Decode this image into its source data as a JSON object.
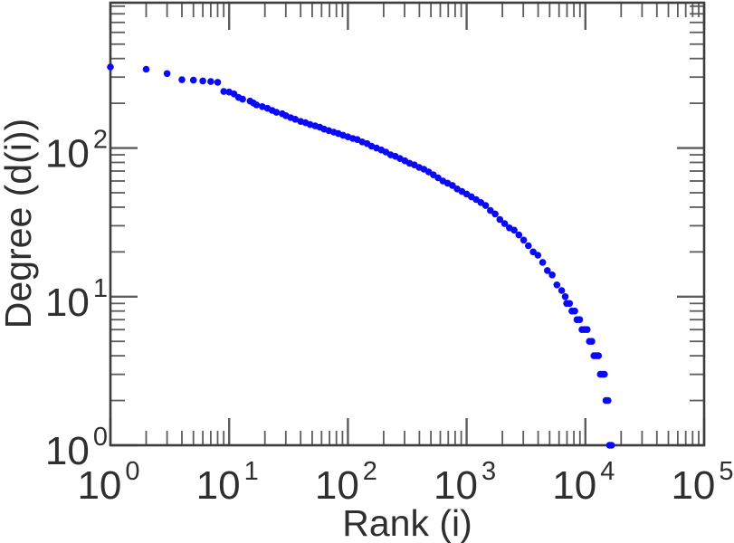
{
  "chart_data": {
    "type": "scatter",
    "title": "",
    "xlabel": "Rank (i)",
    "ylabel": "Degree (d(i))",
    "x_scale": "log",
    "y_scale": "log",
    "xlim": [
      1,
      100000
    ],
    "ylim": [
      1,
      950
    ],
    "x_tick_exponents": [
      0,
      1,
      2,
      3,
      4,
      5
    ],
    "y_tick_exponents": [
      0,
      1,
      2
    ],
    "tick_base": "10",
    "grid": "off",
    "legend": "none",
    "background": "#ffffff",
    "frame_color": "#3d3d3d",
    "tick_color": "#5c5c5c",
    "text_color": "#2f2f2f",
    "marker": {
      "shape": "dot",
      "color": "#0a0af5"
    },
    "points": [
      [
        1,
        351
      ],
      [
        2,
        339
      ],
      [
        3,
        317
      ],
      [
        4,
        288
      ],
      [
        5,
        286
      ],
      [
        6,
        283
      ],
      [
        7,
        280
      ],
      [
        8,
        277
      ],
      [
        9,
        240
      ],
      [
        10,
        238
      ],
      [
        11,
        231
      ],
      [
        12,
        219
      ],
      [
        13,
        213
      ],
      [
        15,
        207
      ],
      [
        16,
        201
      ],
      [
        17,
        195
      ],
      [
        19,
        190
      ],
      [
        21,
        185
      ],
      [
        23,
        179
      ],
      [
        25,
        174
      ],
      [
        28,
        170
      ],
      [
        30,
        165
      ],
      [
        33,
        160
      ],
      [
        36,
        156
      ],
      [
        40,
        151
      ],
      [
        44,
        148
      ],
      [
        48,
        144
      ],
      [
        53,
        141
      ],
      [
        58,
        138
      ],
      [
        63,
        134
      ],
      [
        69,
        131
      ],
      [
        76,
        128
      ],
      [
        83,
        125
      ],
      [
        91,
        122
      ],
      [
        100,
        119
      ],
      [
        110,
        116
      ],
      [
        120,
        114
      ],
      [
        132,
        110
      ],
      [
        145,
        107
      ],
      [
        158,
        103
      ],
      [
        174,
        100
      ],
      [
        191,
        97
      ],
      [
        209,
        94
      ],
      [
        229,
        90
      ],
      [
        251,
        88
      ],
      [
        275,
        85
      ],
      [
        302,
        82
      ],
      [
        331,
        79
      ],
      [
        363,
        77
      ],
      [
        398,
        74
      ],
      [
        437,
        72
      ],
      [
        479,
        69
      ],
      [
        525,
        66
      ],
      [
        575,
        63
      ],
      [
        631,
        60
      ],
      [
        692,
        58
      ],
      [
        759,
        56
      ],
      [
        832,
        53
      ],
      [
        912,
        51
      ],
      [
        1000,
        49
      ],
      [
        1096,
        47
      ],
      [
        1202,
        45
      ],
      [
        1318,
        43
      ],
      [
        1445,
        41
      ],
      [
        1585,
        38
      ],
      [
        1738,
        36
      ],
      [
        1905,
        33
      ],
      [
        2089,
        31
      ],
      [
        2291,
        29
      ],
      [
        2512,
        28
      ],
      [
        2754,
        26
      ],
      [
        3020,
        24
      ],
      [
        3311,
        22
      ],
      [
        3631,
        20
      ],
      [
        3981,
        19
      ],
      [
        4365,
        17
      ],
      [
        4786,
        15
      ],
      [
        5248,
        14
      ],
      [
        5754,
        12
      ],
      [
        6310,
        11
      ],
      [
        6761,
        10
      ],
      [
        6950,
        9
      ],
      [
        7350,
        9
      ],
      [
        7700,
        8
      ],
      [
        8150,
        8
      ],
      [
        8500,
        7
      ],
      [
        8950,
        7
      ],
      [
        9350,
        6
      ],
      [
        9850,
        6
      ],
      [
        10350,
        6
      ],
      [
        10800,
        5
      ],
      [
        11350,
        5
      ],
      [
        11800,
        4
      ],
      [
        12350,
        4
      ],
      [
        12900,
        4
      ],
      [
        13350,
        3
      ],
      [
        13900,
        3
      ],
      [
        14450,
        3
      ],
      [
        14900,
        2
      ],
      [
        15500,
        2
      ],
      [
        15950,
        1
      ],
      [
        16600,
        1
      ]
    ]
  }
}
